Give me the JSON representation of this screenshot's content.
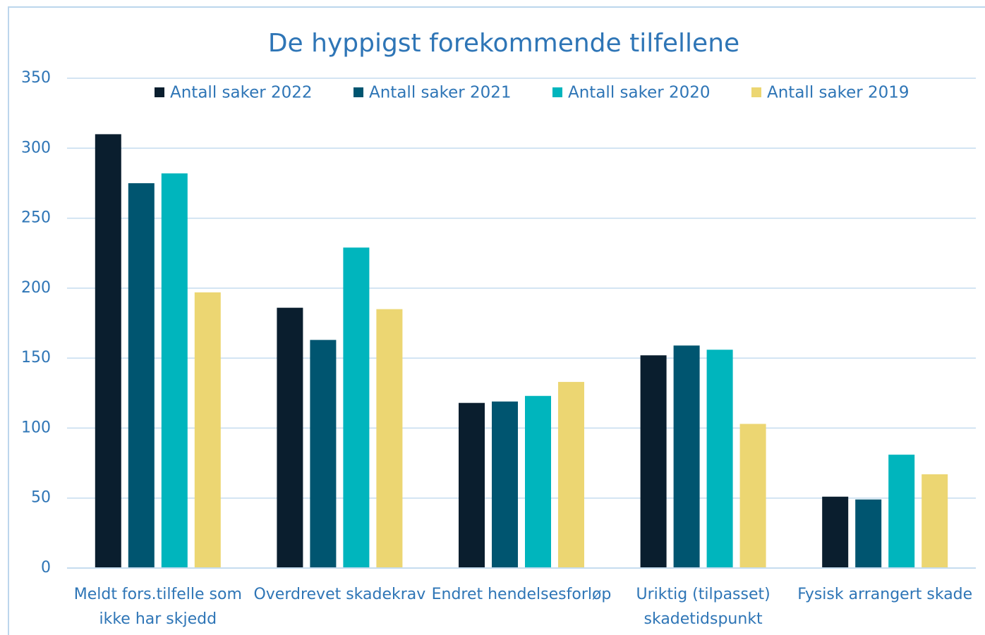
{
  "chart_data": {
    "type": "bar",
    "title": "De hyppigst forekommende tilfellene",
    "categories": [
      "Meldt fors.tilfelle som ikke har skjedd",
      "Overdrevet skadekrav",
      "Endret hendelsesforløp",
      "Uriktig (tilpasset) skadetidspunkt",
      "Fysisk arrangert skade"
    ],
    "series": [
      {
        "name": "Antall saker 2022",
        "color": "#0a1e2e",
        "values": [
          310,
          186,
          118,
          152,
          51
        ]
      },
      {
        "name": "Antall saker 2021",
        "color": "#005570",
        "values": [
          275,
          163,
          119,
          159,
          49
        ]
      },
      {
        "name": "Antall saker 2020",
        "color": "#00b5bd",
        "values": [
          282,
          229,
          123,
          156,
          81
        ]
      },
      {
        "name": "Antall saker 2019",
        "color": "#ecd672",
        "values": [
          197,
          185,
          133,
          103,
          67
        ]
      }
    ],
    "ylim": [
      0,
      350
    ],
    "yticks": [
      0,
      50,
      100,
      150,
      200,
      250,
      300,
      350
    ],
    "grid": true,
    "legend": "top"
  }
}
